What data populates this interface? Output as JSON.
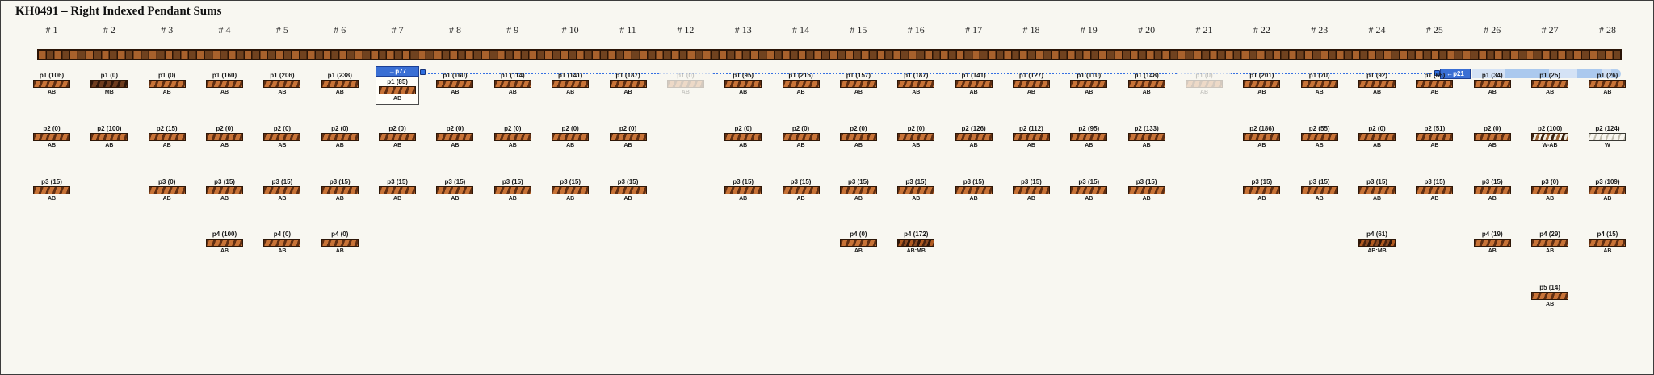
{
  "title": "KH0491 – Right Indexed Pendant Sums",
  "link": {
    "source_label": "→p77",
    "target_label": "←p21"
  },
  "colors": {
    "background": "#f8f7f1",
    "accent_blue": "#3570e3",
    "tag_blue": "#3a6fd4",
    "cord_brown_light": "#a8612c",
    "cord_brown_dark": "#70421f",
    "pendant_orange": "#c87337",
    "pendant_dark": "#5f2e12"
  },
  "columns": [
    {
      "header": "# 1",
      "pendants": [
        {
          "row": 1,
          "label": "p1 (106)",
          "sub": "AB",
          "pattern": "AB"
        },
        {
          "row": 2,
          "label": "p2 (0)",
          "sub": "AB",
          "pattern": "AB"
        },
        {
          "row": 3,
          "label": "p3 (15)",
          "sub": "AB",
          "pattern": "AB"
        }
      ]
    },
    {
      "header": "# 2",
      "pendants": [
        {
          "row": 1,
          "label": "p1 (0)",
          "sub": "MB",
          "pattern": "MB"
        },
        {
          "row": 2,
          "label": "p2 (100)",
          "sub": "AB",
          "pattern": "AB"
        }
      ]
    },
    {
      "header": "# 3",
      "pendants": [
        {
          "row": 1,
          "label": "p1 (0)",
          "sub": "AB",
          "pattern": "AB"
        },
        {
          "row": 2,
          "label": "p2 (15)",
          "sub": "AB",
          "pattern": "AB"
        },
        {
          "row": 3,
          "label": "p3 (0)",
          "sub": "AB",
          "pattern": "AB"
        }
      ]
    },
    {
      "header": "# 4",
      "pendants": [
        {
          "row": 1,
          "label": "p1 (160)",
          "sub": "AB",
          "pattern": "AB"
        },
        {
          "row": 2,
          "label": "p2 (0)",
          "sub": "AB",
          "pattern": "AB"
        },
        {
          "row": 3,
          "label": "p3 (15)",
          "sub": "AB",
          "pattern": "AB"
        },
        {
          "row": 4,
          "label": "p4 (100)",
          "sub": "AB",
          "pattern": "AB"
        }
      ]
    },
    {
      "header": "# 5",
      "pendants": [
        {
          "row": 1,
          "label": "p1 (206)",
          "sub": "AB",
          "pattern": "AB"
        },
        {
          "row": 2,
          "label": "p2 (0)",
          "sub": "AB",
          "pattern": "AB"
        },
        {
          "row": 3,
          "label": "p3 (15)",
          "sub": "AB",
          "pattern": "AB"
        },
        {
          "row": 4,
          "label": "p4 (0)",
          "sub": "AB",
          "pattern": "AB"
        }
      ]
    },
    {
      "header": "# 6",
      "pendants": [
        {
          "row": 1,
          "label": "p1 (238)",
          "sub": "AB",
          "pattern": "AB"
        },
        {
          "row": 2,
          "label": "p2 (0)",
          "sub": "AB",
          "pattern": "AB"
        },
        {
          "row": 3,
          "label": "p3 (15)",
          "sub": "AB",
          "pattern": "AB"
        },
        {
          "row": 4,
          "label": "p4 (0)",
          "sub": "AB",
          "pattern": "AB"
        }
      ]
    },
    {
      "header": "# 7",
      "pendants": [
        {
          "row": 1,
          "label": "p1 (85)",
          "sub": "AB",
          "pattern": "AB",
          "boxed": true
        },
        {
          "row": 2,
          "label": "p2 (0)",
          "sub": "AB",
          "pattern": "AB"
        },
        {
          "row": 3,
          "label": "p3 (15)",
          "sub": "AB",
          "pattern": "AB"
        }
      ]
    },
    {
      "header": "# 8",
      "pendants": [
        {
          "row": 1,
          "label": "p1 (160)",
          "sub": "AB",
          "pattern": "AB"
        },
        {
          "row": 2,
          "label": "p2 (0)",
          "sub": "AB",
          "pattern": "AB"
        },
        {
          "row": 3,
          "label": "p3 (15)",
          "sub": "AB",
          "pattern": "AB"
        }
      ]
    },
    {
      "header": "# 9",
      "pendants": [
        {
          "row": 1,
          "label": "p1 (114)",
          "sub": "AB",
          "pattern": "AB"
        },
        {
          "row": 2,
          "label": "p2 (0)",
          "sub": "AB",
          "pattern": "AB"
        },
        {
          "row": 3,
          "label": "p3 (15)",
          "sub": "AB",
          "pattern": "AB"
        }
      ]
    },
    {
      "header": "# 10",
      "pendants": [
        {
          "row": 1,
          "label": "p1 (141)",
          "sub": "AB",
          "pattern": "AB"
        },
        {
          "row": 2,
          "label": "p2 (0)",
          "sub": "AB",
          "pattern": "AB"
        },
        {
          "row": 3,
          "label": "p3 (15)",
          "sub": "AB",
          "pattern": "AB"
        }
      ]
    },
    {
      "header": "# 11",
      "pendants": [
        {
          "row": 1,
          "label": "p1 (187)",
          "sub": "AB",
          "pattern": "AB"
        },
        {
          "row": 2,
          "label": "p2 (0)",
          "sub": "AB",
          "pattern": "AB"
        },
        {
          "row": 3,
          "label": "p3 (15)",
          "sub": "AB",
          "pattern": "AB"
        }
      ]
    },
    {
      "header": "# 12",
      "pendants": [
        {
          "row": 1,
          "label": "p1 (0)",
          "sub": "AB",
          "pattern": "AB",
          "ghost": true
        }
      ]
    },
    {
      "header": "# 13",
      "pendants": [
        {
          "row": 1,
          "label": "p1 (95)",
          "sub": "AB",
          "pattern": "AB"
        },
        {
          "row": 2,
          "label": "p2 (0)",
          "sub": "AB",
          "pattern": "AB"
        },
        {
          "row": 3,
          "label": "p3 (15)",
          "sub": "AB",
          "pattern": "AB"
        }
      ]
    },
    {
      "header": "# 14",
      "pendants": [
        {
          "row": 1,
          "label": "p1 (215)",
          "sub": "AB",
          "pattern": "AB"
        },
        {
          "row": 2,
          "label": "p2 (0)",
          "sub": "AB",
          "pattern": "AB"
        },
        {
          "row": 3,
          "label": "p3 (15)",
          "sub": "AB",
          "pattern": "AB"
        }
      ]
    },
    {
      "header": "# 15",
      "pendants": [
        {
          "row": 1,
          "label": "p1 (157)",
          "sub": "AB",
          "pattern": "AB"
        },
        {
          "row": 2,
          "label": "p2 (0)",
          "sub": "AB",
          "pattern": "AB"
        },
        {
          "row": 3,
          "label": "p3 (15)",
          "sub": "AB",
          "pattern": "AB"
        },
        {
          "row": 4,
          "label": "p4 (0)",
          "sub": "AB",
          "pattern": "AB"
        }
      ]
    },
    {
      "header": "# 16",
      "pendants": [
        {
          "row": 1,
          "label": "p1 (187)",
          "sub": "AB",
          "pattern": "AB"
        },
        {
          "row": 2,
          "label": "p2 (0)",
          "sub": "AB",
          "pattern": "AB"
        },
        {
          "row": 3,
          "label": "p3 (15)",
          "sub": "AB",
          "pattern": "AB"
        },
        {
          "row": 4,
          "label": "p4 (172)",
          "sub": "AB:MB",
          "pattern": "AB:MB"
        }
      ]
    },
    {
      "header": "# 17",
      "pendants": [
        {
          "row": 1,
          "label": "p1 (141)",
          "sub": "AB",
          "pattern": "AB"
        },
        {
          "row": 2,
          "label": "p2 (126)",
          "sub": "AB",
          "pattern": "AB"
        },
        {
          "row": 3,
          "label": "p3 (15)",
          "sub": "AB",
          "pattern": "AB"
        }
      ]
    },
    {
      "header": "# 18",
      "pendants": [
        {
          "row": 1,
          "label": "p1 (127)",
          "sub": "AB",
          "pattern": "AB"
        },
        {
          "row": 2,
          "label": "p2 (112)",
          "sub": "AB",
          "pattern": "AB"
        },
        {
          "row": 3,
          "label": "p3 (15)",
          "sub": "AB",
          "pattern": "AB"
        }
      ]
    },
    {
      "header": "# 19",
      "pendants": [
        {
          "row": 1,
          "label": "p1 (110)",
          "sub": "AB",
          "pattern": "AB"
        },
        {
          "row": 2,
          "label": "p2 (95)",
          "sub": "AB",
          "pattern": "AB"
        },
        {
          "row": 3,
          "label": "p3 (15)",
          "sub": "AB",
          "pattern": "AB"
        }
      ]
    },
    {
      "header": "# 20",
      "pendants": [
        {
          "row": 1,
          "label": "p1 (148)",
          "sub": "AB",
          "pattern": "AB"
        },
        {
          "row": 2,
          "label": "p2 (133)",
          "sub": "AB",
          "pattern": "AB"
        },
        {
          "row": 3,
          "label": "p3 (15)",
          "sub": "AB",
          "pattern": "AB"
        }
      ]
    },
    {
      "header": "# 21",
      "pendants": [
        {
          "row": 1,
          "label": "p1 (0)",
          "sub": "AB",
          "pattern": "AB",
          "ghost": true
        }
      ]
    },
    {
      "header": "# 22",
      "pendants": [
        {
          "row": 1,
          "label": "p1 (201)",
          "sub": "AB",
          "pattern": "AB"
        },
        {
          "row": 2,
          "label": "p2 (186)",
          "sub": "AB",
          "pattern": "AB"
        },
        {
          "row": 3,
          "label": "p3 (15)",
          "sub": "AB",
          "pattern": "AB"
        }
      ]
    },
    {
      "header": "# 23",
      "pendants": [
        {
          "row": 1,
          "label": "p1 (70)",
          "sub": "AB",
          "pattern": "AB"
        },
        {
          "row": 2,
          "label": "p2 (55)",
          "sub": "AB",
          "pattern": "AB"
        },
        {
          "row": 3,
          "label": "p3 (15)",
          "sub": "AB",
          "pattern": "AB"
        }
      ]
    },
    {
      "header": "# 24",
      "pendants": [
        {
          "row": 1,
          "label": "p1 (92)",
          "sub": "AB",
          "pattern": "AB"
        },
        {
          "row": 2,
          "label": "p2 (0)",
          "sub": "AB",
          "pattern": "AB"
        },
        {
          "row": 3,
          "label": "p3 (15)",
          "sub": "AB",
          "pattern": "AB"
        },
        {
          "row": 4,
          "label": "p4 (61)",
          "sub": "AB:MB",
          "pattern": "AB:MB"
        }
      ]
    },
    {
      "header": "# 25",
      "pendants": [
        {
          "row": 1,
          "label": "p1 (66)",
          "sub": "AB",
          "pattern": "AB"
        },
        {
          "row": 2,
          "label": "p2 (51)",
          "sub": "AB",
          "pattern": "AB"
        },
        {
          "row": 3,
          "label": "p3 (15)",
          "sub": "AB",
          "pattern": "AB"
        }
      ]
    },
    {
      "header": "# 26",
      "pendants": [
        {
          "row": 1,
          "label": "p1 (34)",
          "sub": "AB",
          "pattern": "AB"
        },
        {
          "row": 2,
          "label": "p2 (0)",
          "sub": "AB",
          "pattern": "AB"
        },
        {
          "row": 3,
          "label": "p3 (15)",
          "sub": "AB",
          "pattern": "AB"
        },
        {
          "row": 4,
          "label": "p4 (19)",
          "sub": "AB",
          "pattern": "AB"
        }
      ]
    },
    {
      "header": "# 27",
      "pendants": [
        {
          "row": 1,
          "label": "p1 (25)",
          "sub": "AB",
          "pattern": "AB"
        },
        {
          "row": 2,
          "label": "p2 (100)",
          "sub": "W-AB",
          "pattern": "W-AB"
        },
        {
          "row": 3,
          "label": "p3 (0)",
          "sub": "AB",
          "pattern": "AB"
        },
        {
          "row": 4,
          "label": "p4 (29)",
          "sub": "AB",
          "pattern": "AB"
        },
        {
          "row": 5,
          "label": "p5 (14)",
          "sub": "AB",
          "pattern": "AB"
        }
      ]
    },
    {
      "header": "# 28",
      "pendants": [
        {
          "row": 1,
          "label": "p1 (26)",
          "sub": "AB",
          "pattern": "AB"
        },
        {
          "row": 2,
          "label": "p2 (124)",
          "sub": "W",
          "pattern": "W"
        },
        {
          "row": 3,
          "label": "p3 (109)",
          "sub": "AB",
          "pattern": "AB"
        },
        {
          "row": 4,
          "label": "p4 (15)",
          "sub": "AB",
          "pattern": "AB"
        }
      ]
    }
  ]
}
